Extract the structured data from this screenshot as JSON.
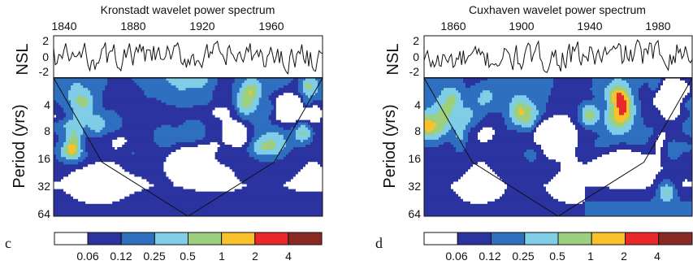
{
  "chart_data": [
    {
      "type": "heatmap",
      "panel_label": "c",
      "title": "Kronstadt wavelet power spectrum",
      "x_ticks": [
        "1840",
        "1880",
        "1920",
        "1960"
      ],
      "x_tick_values": [
        1840,
        1880,
        1920,
        1960
      ],
      "xlim": [
        1840,
        1996
      ],
      "top_series_label": "NSL",
      "top_series_ticks": [
        "2",
        "0",
        "-2"
      ],
      "top_series_tick_values": [
        2,
        0,
        -2
      ],
      "top_series_ylim": [
        -2.8,
        2.8
      ],
      "ylabel": "Period (yrs)",
      "y_ticks": [
        "4",
        "8",
        "16",
        "32",
        "64"
      ],
      "y_tick_values": [
        4,
        8,
        16,
        32,
        64
      ],
      "ylim": [
        2.5,
        64
      ],
      "y_scale": "log2",
      "power_levels": [
        "0.06",
        "0.12",
        "0.25",
        "0.5",
        "1",
        "2",
        "4"
      ],
      "hot_spots": [
        {
          "year": 1858,
          "period": 4.5,
          "level": 4
        },
        {
          "year": 1866,
          "period": 7.5,
          "level": 4
        },
        {
          "year": 1912,
          "period": 4,
          "level": 3
        },
        {
          "year": 1950,
          "period": 5,
          "level": 4
        },
        {
          "year": 1985,
          "period": 9,
          "level": 5
        }
      ],
      "cold_spots": [
        {
          "year": 1920,
          "period": 18,
          "level": 0
        },
        {
          "year": 1865,
          "period": 30,
          "level": 0
        },
        {
          "year": 1975,
          "period": 5,
          "level": 0
        }
      ]
    },
    {
      "type": "heatmap",
      "panel_label": "d",
      "title": "Cuxhaven wavelet power spectrum",
      "x_ticks": [
        "1860",
        "1900",
        "1940",
        "1980"
      ],
      "x_tick_values": [
        1860,
        1900,
        1940,
        1980
      ],
      "xlim": [
        1843,
        2000
      ],
      "top_series_label": "NSL",
      "top_series_ticks": [
        "2",
        "0",
        "-2"
      ],
      "top_series_tick_values": [
        2,
        0,
        -2
      ],
      "top_series_ylim": [
        -2.8,
        2.8
      ],
      "ylabel": "Period (yrs)",
      "y_ticks": [
        "4",
        "8",
        "16",
        "32",
        "64"
      ],
      "y_tick_values": [
        4,
        8,
        16,
        32,
        64
      ],
      "ylim": [
        2.5,
        64
      ],
      "y_scale": "log2",
      "power_levels": [
        "0.06",
        "0.12",
        "0.25",
        "0.5",
        "1",
        "2",
        "4"
      ],
      "hot_spots": [
        {
          "year": 1860,
          "period": 4,
          "level": 4
        },
        {
          "year": 1940,
          "period": 6,
          "level": 5
        },
        {
          "year": 1985,
          "period": 35,
          "level": 5
        },
        {
          "year": 1995,
          "period": 4,
          "level": 4
        }
      ],
      "cold_spots": [
        {
          "year": 1915,
          "period": 10,
          "level": 0
        },
        {
          "year": 1960,
          "period": 20,
          "level": 0
        },
        {
          "year": 1990,
          "period": 4,
          "level": 0
        }
      ]
    }
  ],
  "colorbar": {
    "colors": [
      "#ffffff",
      "#2a33a0",
      "#2f6fc0",
      "#7fcde6",
      "#9ccf7e",
      "#f9c22a",
      "#e8282a",
      "#8b2a25"
    ],
    "contour_color": "#111111"
  }
}
